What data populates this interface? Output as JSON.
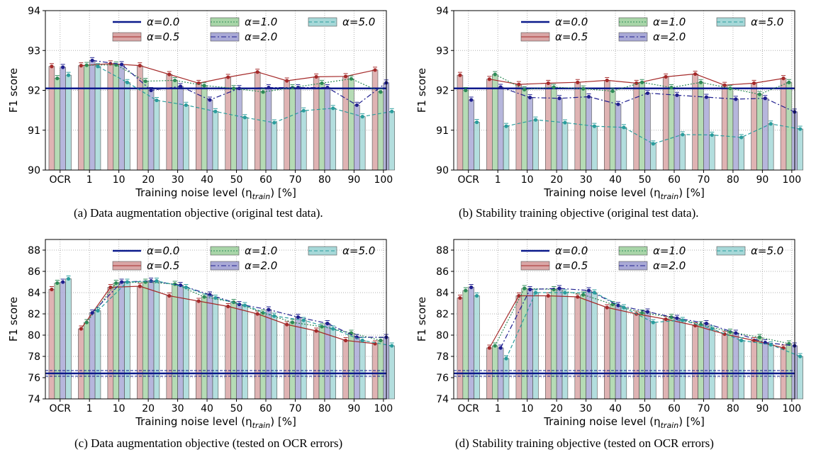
{
  "x_categories": [
    "OCR",
    "1",
    "10",
    "20",
    "30",
    "40",
    "50",
    "60",
    "70",
    "80",
    "90",
    "100"
  ],
  "series_styles": {
    "alpha_0_0": {
      "label": "α=0.0",
      "color": "#0b1a8c"
    },
    "alpha_0_5": {
      "label": "α=0.5",
      "color": "#a52a2a",
      "fill": "#d9a6a6"
    },
    "alpha_1_0": {
      "label": "α=1.0",
      "color": "#2e8b57",
      "fill": "#a8d5a8"
    },
    "alpha_2_0": {
      "label": "α=2.0",
      "color": "#1f1f8f",
      "fill": "#a9a9d6"
    },
    "alpha_5_0": {
      "label": "α=5.0",
      "color": "#2a9d9d",
      "fill": "#a6d8d8"
    }
  },
  "chart_data": [
    {
      "id": "a",
      "type": "bar",
      "caption": "(a) Data augmentation objective (original test data).",
      "xlabel": "Training noise level (ηtrain) [%]",
      "ylabel": "F1 score",
      "ylim": [
        90,
        94
      ],
      "yticks": [
        90,
        91,
        92,
        93,
        94
      ],
      "grid": true,
      "legend": "top",
      "categories": [
        "OCR",
        "1",
        "10",
        "20",
        "30",
        "40",
        "50",
        "60",
        "70",
        "80",
        "90",
        "100"
      ],
      "baseline": {
        "name": "α=0.0",
        "value": 92.05
      },
      "series": [
        {
          "name": "α=0.5",
          "values": [
            92.6,
            92.62,
            92.67,
            92.62,
            92.4,
            92.18,
            92.33,
            92.46,
            92.24,
            92.34,
            92.35,
            92.51
          ]
        },
        {
          "name": "α=1.0",
          "values": [
            92.3,
            92.63,
            92.64,
            92.23,
            92.25,
            92.12,
            92.05,
            91.96,
            92.07,
            92.18,
            92.29,
            91.96
          ]
        },
        {
          "name": "α=2.0",
          "values": [
            92.58,
            92.75,
            92.65,
            92.0,
            92.1,
            91.76,
            92.05,
            92.07,
            92.07,
            92.07,
            91.63,
            92.19
          ]
        },
        {
          "name": "α=5.0",
          "values": [
            92.38,
            92.6,
            92.2,
            91.75,
            91.63,
            91.47,
            91.32,
            91.19,
            91.49,
            91.55,
            91.34,
            91.47
          ]
        }
      ]
    },
    {
      "id": "b",
      "type": "bar",
      "caption": "(b) Stability training objective (original test data).",
      "xlabel": "Training noise level (ηtrain) [%]",
      "ylabel": "F1 score",
      "ylim": [
        90,
        94
      ],
      "yticks": [
        90,
        91,
        92,
        93,
        94
      ],
      "grid": true,
      "legend": "top",
      "categories": [
        "OCR",
        "1",
        "10",
        "20",
        "30",
        "40",
        "50",
        "60",
        "70",
        "80",
        "90",
        "100"
      ],
      "baseline": {
        "name": "α=0.0",
        "value": 92.05
      },
      "series": [
        {
          "name": "α=0.5",
          "values": [
            92.38,
            92.28,
            92.15,
            92.18,
            92.2,
            92.25,
            92.18,
            92.34,
            92.41,
            92.13,
            92.18,
            92.3
          ]
        },
        {
          "name": "α=1.0",
          "values": [
            92.0,
            92.4,
            92.02,
            92.08,
            92.04,
            91.98,
            92.2,
            92.07,
            92.2,
            92.05,
            91.9,
            92.2
          ]
        },
        {
          "name": "α=2.0",
          "values": [
            91.76,
            92.08,
            91.82,
            91.8,
            91.84,
            91.65,
            91.93,
            91.88,
            91.83,
            91.78,
            91.8,
            91.46
          ]
        },
        {
          "name": "α=5.0",
          "values": [
            91.2,
            91.1,
            91.26,
            91.19,
            91.1,
            91.07,
            90.66,
            90.89,
            90.88,
            90.82,
            91.16,
            91.03
          ]
        }
      ]
    },
    {
      "id": "c",
      "type": "bar",
      "caption": "(c) Data augmentation objective (tested on OCR errors)",
      "xlabel": "Training noise level (ηtrain) [%]",
      "ylabel": "F1 score",
      "ylim": [
        74,
        89
      ],
      "yticks": [
        74,
        76,
        78,
        80,
        82,
        84,
        86,
        88
      ],
      "grid": true,
      "legend": "top",
      "categories": [
        "OCR",
        "1",
        "10",
        "20",
        "30",
        "40",
        "50",
        "60",
        "70",
        "80",
        "90",
        "100"
      ],
      "baseline": {
        "name": "α=0.0",
        "value": 76.4
      },
      "series": [
        {
          "name": "α=0.5",
          "values": [
            84.3,
            80.6,
            84.5,
            84.6,
            83.7,
            83.2,
            82.7,
            82.0,
            81.0,
            80.4,
            79.5,
            79.2
          ]
        },
        {
          "name": "α=1.0",
          "values": [
            84.9,
            81.2,
            84.9,
            85.0,
            84.8,
            83.6,
            83.1,
            82.1,
            81.2,
            80.8,
            80.2,
            79.5
          ]
        },
        {
          "name": "α=2.0",
          "values": [
            85.0,
            82.1,
            85.0,
            85.1,
            84.7,
            83.8,
            82.9,
            82.4,
            81.7,
            81.1,
            79.8,
            79.8
          ]
        },
        {
          "name": "α=5.0",
          "values": [
            85.3,
            82.3,
            85.0,
            85.1,
            84.5,
            83.5,
            82.8,
            81.8,
            81.4,
            80.6,
            79.5,
            79.0
          ]
        }
      ]
    },
    {
      "id": "d",
      "type": "bar",
      "caption": "(d) Stability training objective (tested on OCR errors)",
      "xlabel": "Training noise level (ηtrain) [%]",
      "ylabel": "F1 score",
      "ylim": [
        74,
        89
      ],
      "yticks": [
        74,
        76,
        78,
        80,
        82,
        84,
        86,
        88
      ],
      "grid": true,
      "legend": "top",
      "categories": [
        "OCR",
        "1",
        "10",
        "20",
        "30",
        "40",
        "50",
        "60",
        "70",
        "80",
        "90",
        "100"
      ],
      "baseline": {
        "name": "α=0.0",
        "value": 76.4
      },
      "series": [
        {
          "name": "α=0.5",
          "values": [
            83.5,
            78.8,
            83.7,
            83.7,
            83.6,
            82.6,
            82.0,
            81.5,
            80.9,
            80.1,
            79.5,
            78.8
          ]
        },
        {
          "name": "α=1.0",
          "values": [
            84.2,
            79.0,
            84.4,
            84.3,
            83.8,
            82.9,
            82.1,
            81.7,
            81.0,
            80.3,
            79.8,
            79.2
          ]
        },
        {
          "name": "α=2.0",
          "values": [
            84.5,
            78.8,
            84.3,
            84.4,
            84.2,
            82.8,
            82.2,
            81.6,
            81.1,
            80.2,
            79.3,
            79.0
          ]
        },
        {
          "name": "α=5.0",
          "values": [
            83.7,
            77.8,
            84.0,
            84.0,
            84.0,
            82.6,
            81.2,
            81.4,
            80.6,
            79.5,
            79.1,
            78.0
          ]
        }
      ]
    }
  ]
}
